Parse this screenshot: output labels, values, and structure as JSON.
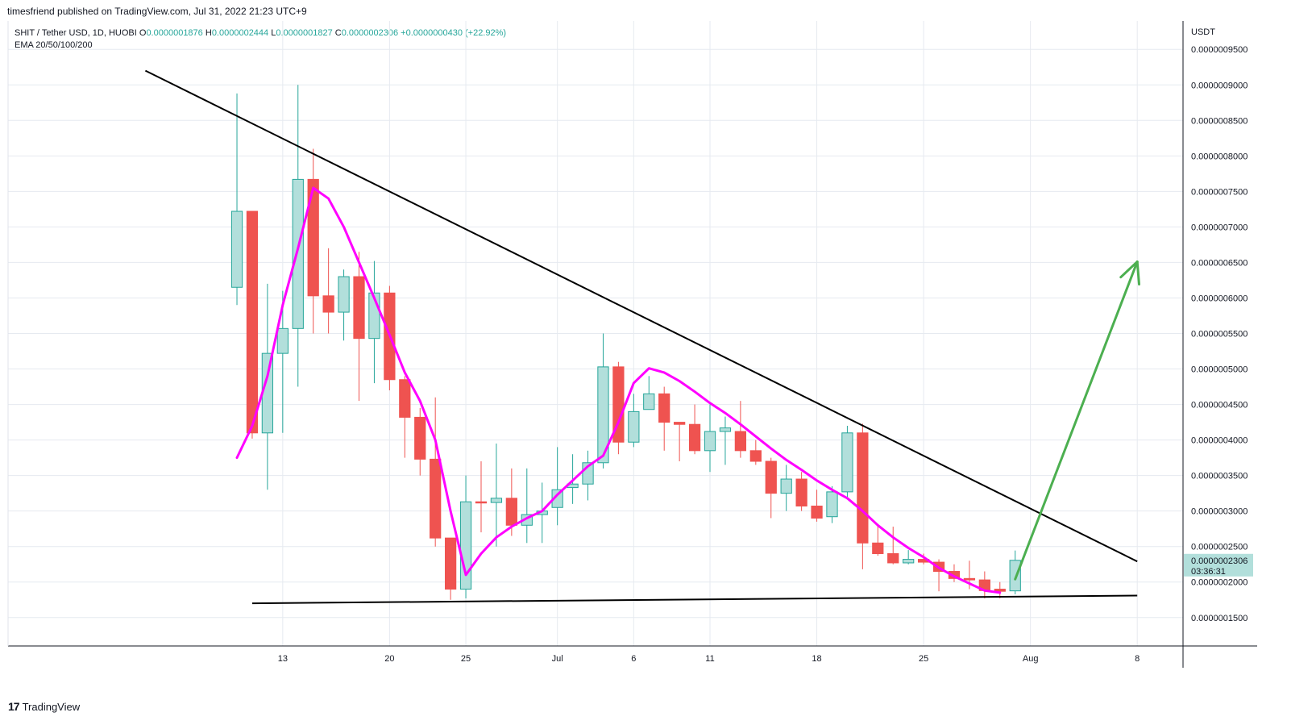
{
  "header": {
    "published": "timesfriend published on TradingView.com, Jul 31, 2022 21:23 UTC+9"
  },
  "legend": {
    "symbol": "SHIT / Tether USD, 1D, HUOBI",
    "o_label": "O",
    "o_value": "0.0000001876",
    "h_label": "H",
    "h_value": "0.0000002444",
    "l_label": "L",
    "l_value": "0.0000001827",
    "c_label": "C",
    "c_value": "0.0000002306",
    "change": "+0.0000000430 (+22.92%)",
    "indicator": "EMA 20/50/100/200"
  },
  "footer": {
    "brand": "TradingView",
    "logo_glyph": "17"
  },
  "colors": {
    "up": "#26a69a",
    "up_fill": "#b2dfdb",
    "down": "#ef5350",
    "ema": "#ff00ff",
    "arrow": "#4caf50",
    "trend": "#000000",
    "grid": "#e6eaf0",
    "price_tag": "#b2dfdb"
  },
  "chart_data": {
    "type": "candlestick",
    "y_axis_label": "USDT",
    "ylim": [
      1.1e-07,
      9.9e-07
    ],
    "y_ticks": [
      {
        "value": 9.5e-07,
        "label": "0.0000009500"
      },
      {
        "value": 9e-07,
        "label": "0.0000009000"
      },
      {
        "value": 8.5e-07,
        "label": "0.0000008500"
      },
      {
        "value": 8e-07,
        "label": "0.0000008000"
      },
      {
        "value": 7.5e-07,
        "label": "0.0000007500"
      },
      {
        "value": 7e-07,
        "label": "0.0000007000"
      },
      {
        "value": 6.5e-07,
        "label": "0.0000006500"
      },
      {
        "value": 6e-07,
        "label": "0.0000006000"
      },
      {
        "value": 5.5e-07,
        "label": "0.0000005500"
      },
      {
        "value": 5e-07,
        "label": "0.0000005000"
      },
      {
        "value": 4.5e-07,
        "label": "0.0000004500"
      },
      {
        "value": 4e-07,
        "label": "0.0000004000"
      },
      {
        "value": 3.5e-07,
        "label": "0.0000003500"
      },
      {
        "value": 3e-07,
        "label": "0.0000003000"
      },
      {
        "value": 2.5e-07,
        "label": "0.0000002500"
      },
      {
        "value": 2e-07,
        "label": "0.0000002000"
      },
      {
        "value": 1.5e-07,
        "label": "0.0000001500"
      }
    ],
    "x_ticks": [
      {
        "date": "2022-06-13",
        "label": "13"
      },
      {
        "date": "2022-06-20",
        "label": "20"
      },
      {
        "date": "2022-06-25",
        "label": "25"
      },
      {
        "date": "2022-07-01",
        "label": "Jul"
      },
      {
        "date": "2022-07-06",
        "label": "6"
      },
      {
        "date": "2022-07-11",
        "label": "11"
      },
      {
        "date": "2022-07-18",
        "label": "18"
      },
      {
        "date": "2022-07-25",
        "label": "25"
      },
      {
        "date": "2022-08-01",
        "label": "Aug"
      },
      {
        "date": "2022-08-08",
        "label": "8"
      }
    ],
    "x_range": [
      "2022-05-26",
      "2022-08-11"
    ],
    "candles": [
      {
        "date": "2022-06-10",
        "o": 6.15e-07,
        "h": 8.88e-07,
        "l": 5.9e-07,
        "c": 7.22e-07
      },
      {
        "date": "2022-06-11",
        "o": 7.22e-07,
        "h": 7.22e-07,
        "l": 4.02e-07,
        "c": 4.1e-07
      },
      {
        "date": "2022-06-12",
        "o": 4.1e-07,
        "h": 6.2e-07,
        "l": 3.3e-07,
        "c": 5.22e-07
      },
      {
        "date": "2022-06-13",
        "o": 5.22e-07,
        "h": 6.1e-07,
        "l": 4.1e-07,
        "c": 5.57e-07
      },
      {
        "date": "2022-06-14",
        "o": 5.57e-07,
        "h": 9e-07,
        "l": 4.75e-07,
        "c": 7.67e-07
      },
      {
        "date": "2022-06-15",
        "o": 7.67e-07,
        "h": 8.1e-07,
        "l": 5.5e-07,
        "c": 6.03e-07
      },
      {
        "date": "2022-06-16",
        "o": 6.03e-07,
        "h": 6.7e-07,
        "l": 5.5e-07,
        "c": 5.8e-07
      },
      {
        "date": "2022-06-17",
        "o": 5.8e-07,
        "h": 6.4e-07,
        "l": 5.4e-07,
        "c": 6.3e-07
      },
      {
        "date": "2022-06-18",
        "o": 6.3e-07,
        "h": 6.65e-07,
        "l": 4.55e-07,
        "c": 5.43e-07
      },
      {
        "date": "2022-06-19",
        "o": 5.43e-07,
        "h": 6.52e-07,
        "l": 4.8e-07,
        "c": 6.07e-07
      },
      {
        "date": "2022-06-20",
        "o": 6.07e-07,
        "h": 6.17e-07,
        "l": 4.7e-07,
        "c": 4.85e-07
      },
      {
        "date": "2022-06-21",
        "o": 4.85e-07,
        "h": 4.9e-07,
        "l": 3.75e-07,
        "c": 4.32e-07
      },
      {
        "date": "2022-06-22",
        "o": 4.32e-07,
        "h": 4.45e-07,
        "l": 3.5e-07,
        "c": 3.73e-07
      },
      {
        "date": "2022-06-23",
        "o": 3.73e-07,
        "h": 4.6e-07,
        "l": 2.5e-07,
        "c": 2.62e-07
      },
      {
        "date": "2022-06-24",
        "o": 2.62e-07,
        "h": 2.62e-07,
        "l": 1.75e-07,
        "c": 1.9e-07
      },
      {
        "date": "2022-06-25",
        "o": 1.9e-07,
        "h": 3.5e-07,
        "l": 1.77e-07,
        "c": 3.13e-07
      },
      {
        "date": "2022-06-26",
        "o": 3.13e-07,
        "h": 3.7e-07,
        "l": 2.7e-07,
        "c": 3.12e-07
      },
      {
        "date": "2022-06-27",
        "o": 3.12e-07,
        "h": 3.95e-07,
        "l": 2.5e-07,
        "c": 3.18e-07
      },
      {
        "date": "2022-06-28",
        "o": 3.18e-07,
        "h": 3.6e-07,
        "l": 2.65e-07,
        "c": 2.8e-07
      },
      {
        "date": "2022-06-29",
        "o": 2.8e-07,
        "h": 3.6e-07,
        "l": 2.55e-07,
        "c": 2.95e-07
      },
      {
        "date": "2022-06-30",
        "o": 2.95e-07,
        "h": 3.4e-07,
        "l": 2.55e-07,
        "c": 3e-07
      },
      {
        "date": "2022-07-01",
        "o": 3.05e-07,
        "h": 3.9e-07,
        "l": 2.8e-07,
        "c": 3.3e-07
      },
      {
        "date": "2022-07-02",
        "o": 3.33e-07,
        "h": 3.8e-07,
        "l": 3.1e-07,
        "c": 3.38e-07
      },
      {
        "date": "2022-07-03",
        "o": 3.38e-07,
        "h": 3.85e-07,
        "l": 3.15e-07,
        "c": 3.68e-07
      },
      {
        "date": "2022-07-04",
        "o": 3.68e-07,
        "h": 5.5e-07,
        "l": 3.6e-07,
        "c": 5.03e-07
      },
      {
        "date": "2022-07-05",
        "o": 5.03e-07,
        "h": 5.1e-07,
        "l": 3.8e-07,
        "c": 3.97e-07
      },
      {
        "date": "2022-07-06",
        "o": 3.97e-07,
        "h": 4.65e-07,
        "l": 3.9e-07,
        "c": 4.4e-07
      },
      {
        "date": "2022-07-07",
        "o": 4.43e-07,
        "h": 4.9e-07,
        "l": 4.45e-07,
        "c": 4.65e-07
      },
      {
        "date": "2022-07-08",
        "o": 4.65e-07,
        "h": 4.75e-07,
        "l": 3.85e-07,
        "c": 4.25e-07
      },
      {
        "date": "2022-07-09",
        "o": 4.25e-07,
        "h": 4.25e-07,
        "l": 3.7e-07,
        "c": 4.22e-07
      },
      {
        "date": "2022-07-10",
        "o": 4.22e-07,
        "h": 4.5e-07,
        "l": 3.8e-07,
        "c": 3.85e-07
      },
      {
        "date": "2022-07-11",
        "o": 3.85e-07,
        "h": 4.5e-07,
        "l": 3.55e-07,
        "c": 4.12e-07
      },
      {
        "date": "2022-07-12",
        "o": 4.12e-07,
        "h": 4.33e-07,
        "l": 3.65e-07,
        "c": 4.17e-07
      },
      {
        "date": "2022-07-13",
        "o": 4.12e-07,
        "h": 4.55e-07,
        "l": 3.75e-07,
        "c": 3.85e-07
      },
      {
        "date": "2022-07-14",
        "o": 3.85e-07,
        "h": 4e-07,
        "l": 3.65e-07,
        "c": 3.7e-07
      },
      {
        "date": "2022-07-15",
        "o": 3.7e-07,
        "h": 3.75e-07,
        "l": 2.9e-07,
        "c": 3.25e-07
      },
      {
        "date": "2022-07-16",
        "o": 3.25e-07,
        "h": 3.65e-07,
        "l": 3e-07,
        "c": 3.45e-07
      },
      {
        "date": "2022-07-17",
        "o": 3.45e-07,
        "h": 3.55e-07,
        "l": 3e-07,
        "c": 3.07e-07
      },
      {
        "date": "2022-07-18",
        "o": 3.07e-07,
        "h": 3.3e-07,
        "l": 2.85e-07,
        "c": 2.9e-07
      },
      {
        "date": "2022-07-19",
        "o": 2.92e-07,
        "h": 3.35e-07,
        "l": 2.83e-07,
        "c": 3.27e-07
      },
      {
        "date": "2022-07-20",
        "o": 3.27e-07,
        "h": 4.2e-07,
        "l": 3.2e-07,
        "c": 4.1e-07
      },
      {
        "date": "2022-07-21",
        "o": 4.1e-07,
        "h": 4.23e-07,
        "l": 2.18e-07,
        "c": 2.55e-07
      },
      {
        "date": "2022-07-22",
        "o": 2.55e-07,
        "h": 2.8e-07,
        "l": 2.37e-07,
        "c": 2.4e-07
      },
      {
        "date": "2022-07-23",
        "o": 2.4e-07,
        "h": 2.78e-07,
        "l": 2.25e-07,
        "c": 2.27e-07
      },
      {
        "date": "2022-07-24",
        "o": 2.27e-07,
        "h": 2.45e-07,
        "l": 2.25e-07,
        "c": 2.32e-07
      },
      {
        "date": "2022-07-25",
        "o": 2.32e-07,
        "h": 2.4e-07,
        "l": 2.25e-07,
        "c": 2.28e-07
      },
      {
        "date": "2022-07-26",
        "o": 2.28e-07,
        "h": 2.32e-07,
        "l": 1.87e-07,
        "c": 2.15e-07
      },
      {
        "date": "2022-07-27",
        "o": 2.15e-07,
        "h": 2.25e-07,
        "l": 2e-07,
        "c": 2.05e-07
      },
      {
        "date": "2022-07-28",
        "o": 2.05e-07,
        "h": 2.3e-07,
        "l": 1.9e-07,
        "c": 2.03e-07
      },
      {
        "date": "2022-07-29",
        "o": 2.03e-07,
        "h": 2.15e-07,
        "l": 1.77e-07,
        "c": 1.88e-07
      },
      {
        "date": "2022-07-30",
        "o": 1.9e-07,
        "h": 2e-07,
        "l": 1.77e-07,
        "c": 1.87e-07
      },
      {
        "date": "2022-07-31",
        "o": 1.876e-07,
        "h": 2.444e-07,
        "l": 1.827e-07,
        "c": 2.306e-07
      }
    ],
    "ema": [
      {
        "date": "2022-06-10",
        "v": 3.75e-07
      },
      {
        "date": "2022-06-11",
        "v": 4.2e-07
      },
      {
        "date": "2022-06-12",
        "v": 4.9e-07
      },
      {
        "date": "2022-06-13",
        "v": 5.9e-07
      },
      {
        "date": "2022-06-14",
        "v": 6.7e-07
      },
      {
        "date": "2022-06-15",
        "v": 7.55e-07
      },
      {
        "date": "2022-06-16",
        "v": 7.4e-07
      },
      {
        "date": "2022-06-17",
        "v": 7e-07
      },
      {
        "date": "2022-06-18",
        "v": 6.5e-07
      },
      {
        "date": "2022-06-19",
        "v": 6e-07
      },
      {
        "date": "2022-06-20",
        "v": 5.48e-07
      },
      {
        "date": "2022-06-21",
        "v": 4.95e-07
      },
      {
        "date": "2022-06-22",
        "v": 4.55e-07
      },
      {
        "date": "2022-06-23",
        "v": 4e-07
      },
      {
        "date": "2022-06-24",
        "v": 3e-07
      },
      {
        "date": "2022-06-25",
        "v": 2.1e-07
      },
      {
        "date": "2022-06-26",
        "v": 2.4e-07
      },
      {
        "date": "2022-06-27",
        "v": 2.63e-07
      },
      {
        "date": "2022-06-28",
        "v": 2.78e-07
      },
      {
        "date": "2022-06-29",
        "v": 2.9e-07
      },
      {
        "date": "2022-06-30",
        "v": 3e-07
      },
      {
        "date": "2022-07-01",
        "v": 3.23e-07
      },
      {
        "date": "2022-07-02",
        "v": 3.43e-07
      },
      {
        "date": "2022-07-03",
        "v": 3.63e-07
      },
      {
        "date": "2022-07-04",
        "v": 3.78e-07
      },
      {
        "date": "2022-07-05",
        "v": 4.25e-07
      },
      {
        "date": "2022-07-06",
        "v": 4.8e-07
      },
      {
        "date": "2022-07-07",
        "v": 5.01e-07
      },
      {
        "date": "2022-07-08",
        "v": 4.95e-07
      },
      {
        "date": "2022-07-09",
        "v": 4.83e-07
      },
      {
        "date": "2022-07-10",
        "v": 4.68e-07
      },
      {
        "date": "2022-07-11",
        "v": 4.52e-07
      },
      {
        "date": "2022-07-12",
        "v": 4.38e-07
      },
      {
        "date": "2022-07-13",
        "v": 4.22e-07
      },
      {
        "date": "2022-07-14",
        "v": 4.05e-07
      },
      {
        "date": "2022-07-15",
        "v": 3.88e-07
      },
      {
        "date": "2022-07-16",
        "v": 3.72e-07
      },
      {
        "date": "2022-07-17",
        "v": 3.58e-07
      },
      {
        "date": "2022-07-18",
        "v": 3.43e-07
      },
      {
        "date": "2022-07-19",
        "v": 3.3e-07
      },
      {
        "date": "2022-07-20",
        "v": 3.18e-07
      },
      {
        "date": "2022-07-21",
        "v": 3e-07
      },
      {
        "date": "2022-07-22",
        "v": 2.8e-07
      },
      {
        "date": "2022-07-23",
        "v": 2.63e-07
      },
      {
        "date": "2022-07-24",
        "v": 2.48e-07
      },
      {
        "date": "2022-07-25",
        "v": 2.35e-07
      },
      {
        "date": "2022-07-26",
        "v": 2.2e-07
      },
      {
        "date": "2022-07-27",
        "v": 2.08e-07
      },
      {
        "date": "2022-07-28",
        "v": 1.98e-07
      },
      {
        "date": "2022-07-29",
        "v": 1.88e-07
      },
      {
        "date": "2022-07-30",
        "v": 1.85e-07
      }
    ],
    "trendlines": [
      {
        "name": "descending-resistance",
        "from": {
          "date": "2022-06-04",
          "v": 9.2e-07
        },
        "to": {
          "date": "2022-08-08",
          "v": 2.29e-07
        }
      },
      {
        "name": "horizontal-support",
        "from": {
          "date": "2022-06-11",
          "v": 1.7e-07
        },
        "to": {
          "date": "2022-08-08",
          "v": 1.81e-07
        }
      }
    ],
    "arrow": {
      "from": {
        "date": "2022-07-31",
        "v": 2.04e-07
      },
      "to": {
        "date": "2022-08-08",
        "v": 6.51e-07
      }
    },
    "price_tag": {
      "value": 2.306e-07,
      "label": "0.0000002306",
      "countdown": "03:36:31"
    }
  }
}
